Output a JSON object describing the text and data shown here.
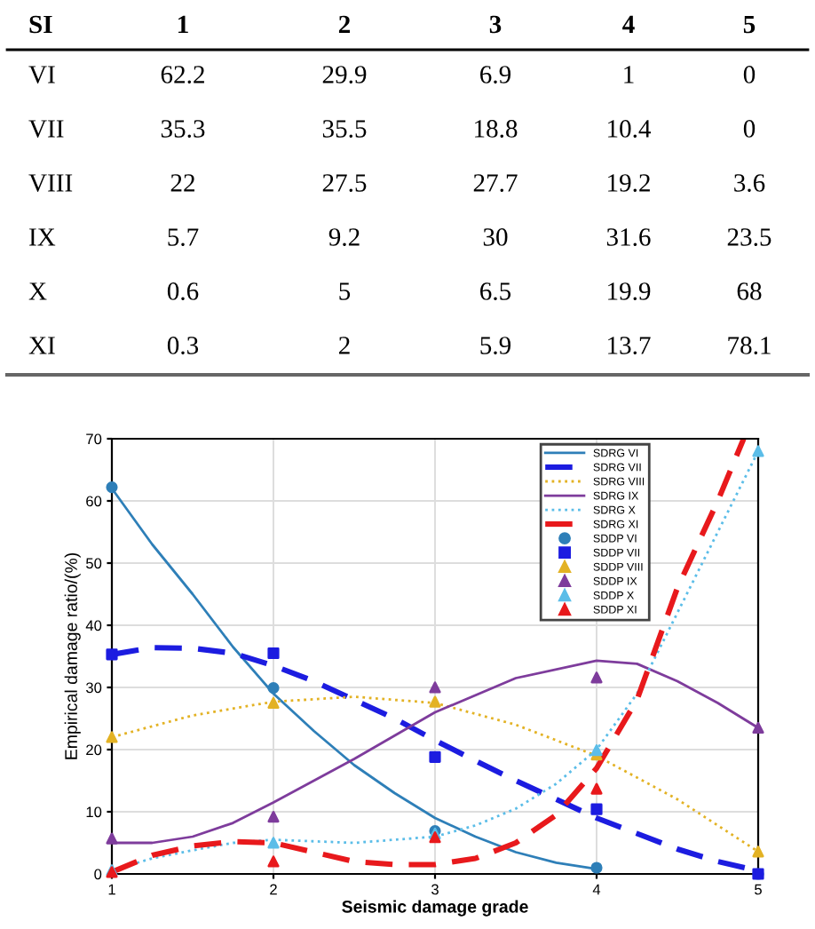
{
  "chart_data": [
    {
      "type": "heatmap",
      "ylabel": "SI",
      "color": "#ffffff",
      "categories": [
        "1",
        "2",
        "3",
        "4",
        "5"
      ],
      "y_categories": [
        "VI",
        "VII",
        "VIII",
        "IX",
        "X",
        "XI"
      ],
      "cells": [
        [
          62.2,
          29.9,
          6.9,
          1,
          0
        ],
        [
          35.3,
          35.5,
          18.8,
          10.4,
          0
        ],
        [
          22,
          27.5,
          27.7,
          19.2,
          3.6
        ],
        [
          5.7,
          9.2,
          30,
          31.6,
          23.5
        ],
        [
          0.6,
          5,
          6.5,
          19.9,
          68
        ],
        [
          0.3,
          2,
          5.9,
          13.7,
          78.1
        ]
      ],
      "cell_labels": [
        [
          "62.2",
          "29.9",
          "6.9",
          "1",
          "0"
        ],
        [
          "35.3",
          "35.5",
          "18.8",
          "10.4",
          "0"
        ],
        [
          "22",
          "27.5",
          "27.7",
          "19.2",
          "3.6"
        ],
        [
          "5.7",
          "9.2",
          "30",
          "31.6",
          "23.5"
        ],
        [
          "0.6",
          "5",
          "6.5",
          "19.9",
          "68"
        ],
        [
          "0.3",
          "2",
          "5.9",
          "13.7",
          "78.1"
        ]
      ]
    },
    {
      "type": "line",
      "xlabel": "Seismic damage grade",
      "ylabel": "Empirical damage ratio/(%)",
      "xlim": [
        1,
        5
      ],
      "ylim": [
        0,
        70
      ],
      "xticks": [
        1,
        2,
        3,
        4,
        5
      ],
      "yticks": [
        0,
        10,
        20,
        30,
        40,
        50,
        60,
        70
      ],
      "grid": true,
      "legend": "top right",
      "series": [
        {
          "name": "SDRG VI",
          "line_style": "solid",
          "color": "#2e7fb8",
          "x": [
            1,
            1.25,
            1.5,
            1.75,
            2,
            2.25,
            2.5,
            2.75,
            3,
            3.25,
            3.5,
            3.75,
            4
          ],
          "values": [
            62,
            53,
            45,
            36.5,
            29,
            23,
            17.5,
            13,
            9,
            6,
            3.5,
            1.8,
            0.8
          ]
        },
        {
          "name": "SDRG VII",
          "line_style": "dashed",
          "color": "#1c1ce0",
          "x": [
            1,
            1.25,
            1.5,
            1.75,
            2,
            2.25,
            2.5,
            2.75,
            3,
            3.25,
            3.5,
            3.75,
            4,
            4.25,
            4.5,
            4.75,
            5
          ],
          "values": [
            35.3,
            36.4,
            36.3,
            35.5,
            33.5,
            31,
            28,
            25,
            21.5,
            18.2,
            15,
            12,
            9,
            6.5,
            4,
            2,
            0.5
          ]
        },
        {
          "name": "SDRG VIII",
          "line_style": "dotted",
          "color": "#e3b224",
          "x": [
            1,
            1.5,
            2,
            2.5,
            3,
            3.5,
            4,
            4.5,
            5
          ],
          "values": [
            22,
            25.5,
            27.7,
            28.5,
            27.5,
            24,
            19,
            12,
            3.6
          ]
        },
        {
          "name": "SDRG IX",
          "line_style": "solid",
          "color": "#7e3c9c",
          "x": [
            1,
            1.25,
            1.5,
            1.75,
            2,
            2.5,
            3,
            3.5,
            4,
            4.25,
            4.5,
            4.75,
            5
          ],
          "values": [
            5,
            5,
            6,
            8.2,
            11.5,
            18.5,
            26,
            31.5,
            34.3,
            33.8,
            31,
            27.5,
            23.5
          ]
        },
        {
          "name": "SDRG X",
          "line_style": "dotted",
          "color": "#5bbde8",
          "x": [
            1,
            1.25,
            1.5,
            1.75,
            2,
            2.5,
            3,
            3.25,
            3.5,
            3.75,
            4,
            4.25,
            4.5,
            4.75,
            5
          ],
          "values": [
            0.6,
            2.5,
            3.8,
            5,
            5.5,
            5,
            6,
            7.8,
            10.5,
            14.5,
            20,
            29,
            42,
            55,
            68
          ]
        },
        {
          "name": "SDRG XI",
          "line_style": "dashed",
          "color": "#e8191c",
          "x": [
            1,
            1.25,
            1.5,
            1.75,
            2,
            2.25,
            2.5,
            2.75,
            3,
            3.25,
            3.5,
            3.75,
            4,
            4.25,
            4.5,
            4.75,
            4.91
          ],
          "values": [
            0.3,
            3,
            4.5,
            5.2,
            5,
            3.5,
            2,
            1.5,
            1.5,
            2.5,
            5,
            9.5,
            17,
            28,
            46,
            60,
            70
          ]
        },
        {
          "name": "SDDP VI",
          "type": "scatter",
          "marker": "circle",
          "color": "#2e7fb8",
          "x": [
            1,
            2,
            3,
            4,
            5
          ],
          "values": [
            62.2,
            29.9,
            6.9,
            1,
            0
          ]
        },
        {
          "name": "SDDP VII",
          "type": "scatter",
          "marker": "square",
          "color": "#1c1ce0",
          "x": [
            1,
            2,
            3,
            4,
            5
          ],
          "values": [
            35.3,
            35.5,
            18.8,
            10.4,
            0
          ]
        },
        {
          "name": "SDDP VIII",
          "type": "scatter",
          "marker": "triangle",
          "color": "#e3b224",
          "x": [
            1,
            2,
            3,
            4,
            5
          ],
          "values": [
            22,
            27.5,
            27.7,
            19.2,
            3.6
          ]
        },
        {
          "name": "SDDP IX",
          "type": "scatter",
          "marker": "triangle",
          "color": "#7e3c9c",
          "x": [
            1,
            2,
            3,
            4,
            5
          ],
          "values": [
            5.7,
            9.2,
            30,
            31.6,
            23.5
          ]
        },
        {
          "name": "SDDP X",
          "type": "scatter",
          "marker": "triangle",
          "color": "#5bbde8",
          "x": [
            1,
            2,
            3,
            4,
            5
          ],
          "values": [
            0.6,
            5,
            6.5,
            19.9,
            68
          ]
        },
        {
          "name": "SDDP XI",
          "type": "scatter",
          "marker": "triangle",
          "color": "#e8191c",
          "x": [
            1,
            2,
            3,
            4
          ],
          "values": [
            0.3,
            2,
            5.9,
            13.7
          ]
        }
      ]
    }
  ]
}
